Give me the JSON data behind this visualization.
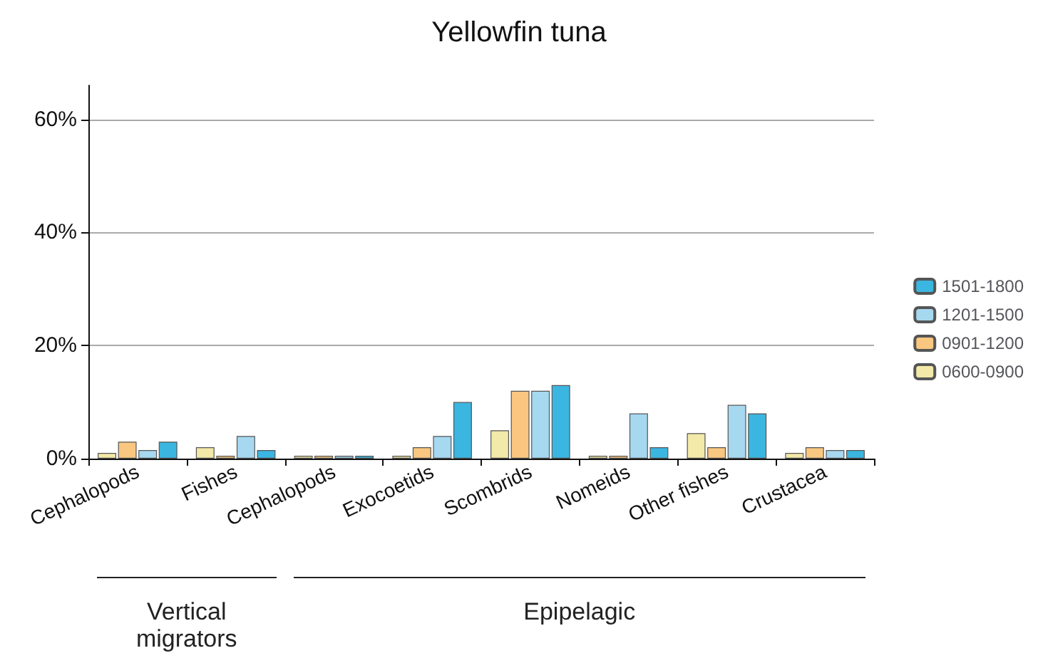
{
  "chart_data": {
    "type": "bar",
    "title": "Yellowfin tuna",
    "categories": [
      "Cephalopods",
      "Fishes",
      "Cephalopods",
      "Exocoetids",
      "Scombrids",
      "Nomeids",
      "Other fishes",
      "Crustacea"
    ],
    "series": [
      {
        "name": "0600-0900",
        "color": "#f3e9a8",
        "values": [
          1,
          2,
          0.5,
          0.5,
          5,
          0.5,
          4.5,
          1
        ]
      },
      {
        "name": "0901-1200",
        "color": "#f9c77f",
        "values": [
          3,
          0.5,
          0.5,
          2,
          12,
          0.5,
          2,
          2
        ]
      },
      {
        "name": "1201-1500",
        "color": "#a6d8f0",
        "values": [
          1.5,
          4,
          0.5,
          4,
          12,
          8,
          9.5,
          1.5
        ]
      },
      {
        "name": "1501-1800",
        "color": "#3bb6e0",
        "values": [
          3,
          1.5,
          0.5,
          10,
          13,
          2,
          8,
          1.5
        ]
      }
    ],
    "ylim": [
      0,
      66
    ],
    "yticks": [
      {
        "value": 0,
        "label": "0%"
      },
      {
        "value": 20,
        "label": "20%"
      },
      {
        "value": 40,
        "label": "40%"
      },
      {
        "value": 60,
        "label": "60%"
      }
    ],
    "grid": "y",
    "legend": "right",
    "annotations": [
      "Vertical migrators",
      "Epipelagic"
    ]
  }
}
